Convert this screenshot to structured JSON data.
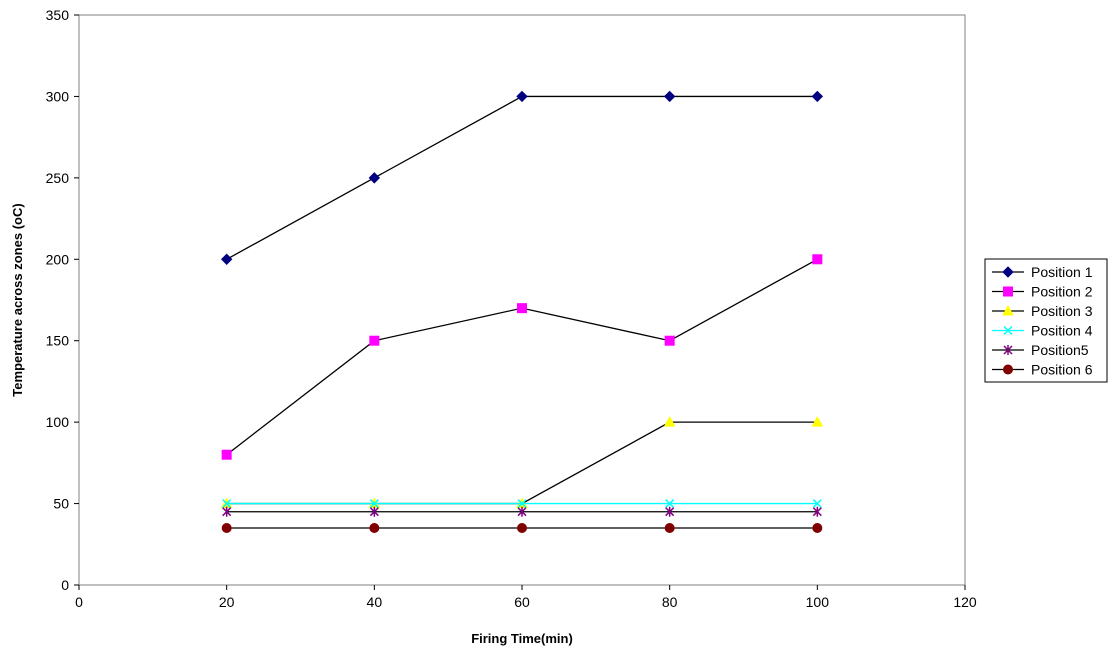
{
  "chart_data": {
    "type": "scatter",
    "xlabel": "Firing Time(min)",
    "ylabel": "Temperature across zones (oC)",
    "xlim": [
      0,
      120
    ],
    "ylim": [
      0,
      350
    ],
    "x_ticks": [
      0,
      20,
      40,
      60,
      80,
      100,
      120
    ],
    "y_ticks": [
      0,
      50,
      100,
      150,
      200,
      250,
      300,
      350
    ],
    "grid": false,
    "legend_position": "right",
    "line_color": "#000000",
    "x": [
      20,
      40,
      60,
      80,
      100
    ],
    "series": [
      {
        "name": "Position 1",
        "values": [
          200,
          250,
          300,
          300,
          300
        ],
        "marker": "diamond",
        "color": "#000080"
      },
      {
        "name": "Position 2",
        "values": [
          80,
          150,
          170,
          150,
          200
        ],
        "marker": "square",
        "color": "#ff00ff"
      },
      {
        "name": "Position 3",
        "values": [
          50,
          50,
          50,
          100,
          100
        ],
        "marker": "triangle",
        "color": "#ffff00"
      },
      {
        "name": "Position 4",
        "values": [
          50,
          50,
          50,
          50,
          50
        ],
        "marker": "x",
        "color": "#00ffff"
      },
      {
        "name": "Position5",
        "values": [
          45,
          45,
          45,
          45,
          45
        ],
        "marker": "star",
        "color": "#800080"
      },
      {
        "name": "Position 6",
        "values": [
          35,
          35,
          35,
          35,
          35
        ],
        "marker": "circle",
        "color": "#800000"
      }
    ]
  }
}
